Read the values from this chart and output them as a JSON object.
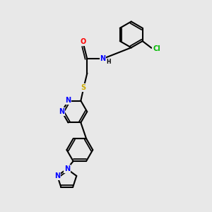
{
  "background_color": "#e8e8e8",
  "bond_color": "#000000",
  "bond_width": 1.5,
  "atom_colors": {
    "N": "#0000ff",
    "O": "#ff0000",
    "S": "#ccaa00",
    "Cl": "#00bb00",
    "C": "#000000",
    "H": "#000000"
  },
  "font_size": 7.0
}
